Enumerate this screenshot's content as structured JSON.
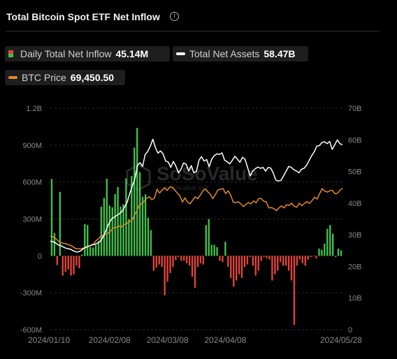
{
  "header": {
    "title": "Total Bitcoin Spot ETF Net Inflow",
    "info_icon": "i"
  },
  "legend": [
    {
      "label": "Daily Total Net Inflow",
      "value": "45.14M",
      "icon": "two-color-bar-icon",
      "colors": [
        "#e0443a",
        "#3fc14b"
      ]
    },
    {
      "label": "Total Net Assets",
      "value": "58.47B",
      "icon": "line-icon",
      "color": "#ffffff"
    },
    {
      "label": "BTC Price",
      "value": "69,450.50",
      "icon": "line-icon",
      "color": "#e58a2b"
    }
  ],
  "watermark": {
    "brand": "SoSoValue",
    "url": "sosovalue.xyz"
  },
  "chart_data": {
    "type": "bar",
    "title": "Total Bitcoin Spot ETF Net Inflow",
    "left_axis": {
      "ticks": [
        "1.2B",
        "900M",
        "600M",
        "300M",
        "0",
        "-300M",
        "-600M"
      ],
      "ylim": [
        -600,
        1200
      ],
      "unit": "M"
    },
    "right_axis": {
      "ticks": [
        "70B",
        "60B",
        "50B",
        "40B",
        "30B",
        "20B",
        "10B",
        "0"
      ],
      "ylim": [
        0,
        70
      ],
      "unit": "B"
    },
    "x_ticks": [
      "2024/01/10",
      "2024/02/08",
      "2024/03/08",
      "2024/04/08",
      "2024/05/28"
    ],
    "x_tick_index": [
      0,
      21,
      42,
      63,
      100
    ],
    "grid": "horizontal dashed",
    "bar_colors": {
      "positive": "#3fc14b",
      "negative": "#e0443a"
    },
    "series": [
      {
        "name": "Daily Total Net Inflow",
        "unit": "M",
        "values": [
          625,
          186,
          -75,
          520,
          -160,
          -130,
          -110,
          -160,
          -150,
          -80,
          -100,
          10,
          258,
          250,
          72,
          68,
          90,
          120,
          400,
          472,
          628,
          410,
          395,
          502,
          560,
          400,
          420,
          630,
          300,
          650,
          880,
          1040,
          680,
          480,
          500,
          310,
          210,
          -120,
          -95,
          -70,
          -90,
          -320,
          -210,
          -140,
          -90,
          -35,
          -10,
          -40,
          -40,
          -60,
          -80,
          -170,
          -260,
          -90,
          -60,
          -70,
          250,
          300,
          90,
          90,
          70,
          -40,
          -50,
          115,
          -90,
          -180,
          -250,
          -200,
          -150,
          -180,
          -90,
          -70,
          -10,
          -80,
          -160,
          -120,
          -40,
          -10,
          -20,
          -30,
          -200,
          -150,
          -120,
          -50,
          -80,
          -80,
          -120,
          -200,
          -560,
          -80,
          -30,
          -60,
          -80,
          -30,
          -10,
          -5,
          -20,
          60,
          50,
          100,
          220,
          250,
          180,
          -10,
          60,
          45
        ],
        "bar_tops": [
          625,
          186,
          -75,
          520,
          -160,
          -130,
          -110,
          -160,
          -150,
          -80,
          -100,
          10,
          258,
          250,
          72,
          68,
          90,
          120,
          400,
          472,
          628,
          410,
          395,
          502,
          560,
          400,
          420,
          630,
          300,
          650,
          880,
          1040,
          680,
          480,
          500,
          310,
          210,
          -120,
          -95,
          -70,
          -90,
          -320,
          -210,
          -140,
          -90,
          -35,
          -10,
          -40,
          -40,
          -60,
          -80,
          -170,
          -260,
          -90,
          -60,
          -70,
          250,
          300,
          90,
          90,
          70,
          -40,
          -50,
          115,
          -90,
          -180,
          -250,
          -200,
          -150,
          -180,
          -90,
          -70,
          -10,
          -80,
          -160,
          -120,
          -40,
          -10,
          -20,
          -30,
          -200,
          -150,
          -120,
          -50,
          -80,
          -80,
          -120,
          -200,
          -560,
          -80,
          -30,
          -60,
          -80,
          -30,
          -10,
          -5,
          -20,
          60,
          50,
          100,
          220,
          250,
          180,
          -10,
          60,
          45
        ]
      },
      {
        "name": "Total Net Assets",
        "unit": "B",
        "values": [
          28,
          27.8,
          27.5,
          26.8,
          26.6,
          26.2,
          25.8,
          25.6,
          25.4,
          24.9,
          24.6,
          24.6,
          25.0,
          25.7,
          26.1,
          26.4,
          26.7,
          26.9,
          27.2,
          27.6,
          28.5,
          30.0,
          32.0,
          33.8,
          35.1,
          35.6,
          36.2,
          36.7,
          37.4,
          38.8,
          40.3,
          43.1,
          45.4,
          47.7,
          52.0,
          52.8,
          51.6,
          55.4,
          56.3,
          58.0,
          60.2,
          57.6,
          55.8,
          56.5,
          55.6,
          53.3,
          53.0,
          51.3,
          53.2,
          51.7,
          49.6,
          50.7,
          52.7,
          52.3,
          50.1,
          51.9,
          49.6,
          50.0,
          53.6,
          54.7,
          53.3,
          53.8,
          51.5,
          54.0,
          55.0,
          55.6,
          55.4,
          55.9,
          53.6,
          53.1,
          52.4,
          53.5,
          54.8,
          53.9,
          52.9,
          54.5,
          53.8,
          51.2,
          48.6,
          50.2,
          50.9,
          51.4,
          51.0,
          51.3,
          50.1,
          51.3,
          51.1,
          49.5,
          47.3,
          47.0,
          47.2,
          48.6,
          50.1,
          51.6,
          51.3,
          50.6,
          50.2,
          49.6,
          50.7,
          51.0,
          52.0,
          53.5,
          55.0,
          56.3,
          58.0,
          58.2,
          59.2,
          59.4,
          58.8,
          59.5,
          57.0,
          58.5,
          60.0,
          58.8,
          58.47
        ]
      },
      {
        "name": "BTC Price",
        "values": [
          29.5,
          29.4,
          28.9,
          28.1,
          27.6,
          27.3,
          27.2,
          26.9,
          26.6,
          26.2,
          25.6,
          25.6,
          25.5,
          25.8,
          25.9,
          26.3,
          26.7,
          27.1,
          28.1,
          28.8,
          29.7,
          29.8,
          30.1,
          30.7,
          31.5,
          32.2,
          32.4,
          32.7,
          32.5,
          33.2,
          33.5,
          34.3,
          34.2,
          36.0,
          37.4,
          39.3,
          39.9,
          40.6,
          41.6,
          42.0,
          41.1,
          41.6,
          44.4,
          43.2,
          44.1,
          44.9,
          44.0,
          45.1,
          45.0,
          44.1,
          43.2,
          42.3,
          40.3,
          41.7,
          40.3,
          39.8,
          40.9,
          42.0,
          41.4,
          42.5,
          43.9,
          44.5,
          43.6,
          42.8,
          41.4,
          42.8,
          44.2,
          44.4,
          44.6,
          43.0,
          43.9,
          42.5,
          40.3,
          40.2,
          40.4,
          39.8,
          38.9,
          39.6,
          40.2,
          39.8,
          40.7,
          40.1,
          41.4,
          41.5,
          40.6,
          40.4,
          38.5,
          38.6,
          38.3,
          37.6,
          38.5,
          39.1,
          38.5,
          39.5,
          39.3,
          40.0,
          39.0,
          38.7,
          40.0,
          39.2,
          39.9,
          40.5,
          39.9,
          40.8,
          41.9,
          41.3,
          43.0,
          44.6,
          43.8,
          43.5,
          43.9,
          44.1,
          43.0,
          43.1,
          44.1,
          44.7
        ]
      }
    ]
  }
}
